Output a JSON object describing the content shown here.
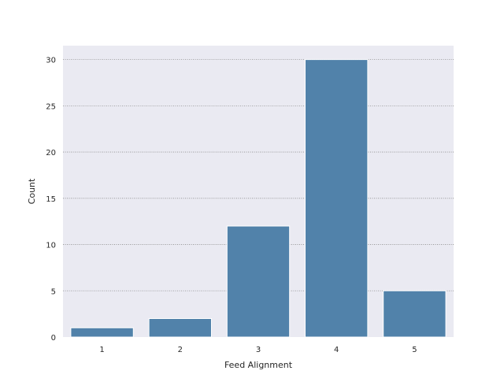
{
  "chart_data": {
    "type": "bar",
    "title": "",
    "xlabel": "Feed Alignment",
    "ylabel": "Count",
    "categories": [
      "1",
      "2",
      "3",
      "4",
      "5"
    ],
    "values": [
      1,
      2,
      12,
      30,
      5
    ],
    "ylim": [
      0,
      31.5
    ],
    "yticks": [
      0,
      5,
      10,
      15,
      20,
      25,
      30
    ],
    "ytick_labels": [
      "0",
      "5",
      "10",
      "15",
      "20",
      "25",
      "30"
    ],
    "grid": "y-dotted",
    "bar_color": "#5182aa",
    "plot_background": "#eaeaf2",
    "grid_color": "#8c8c8c"
  }
}
